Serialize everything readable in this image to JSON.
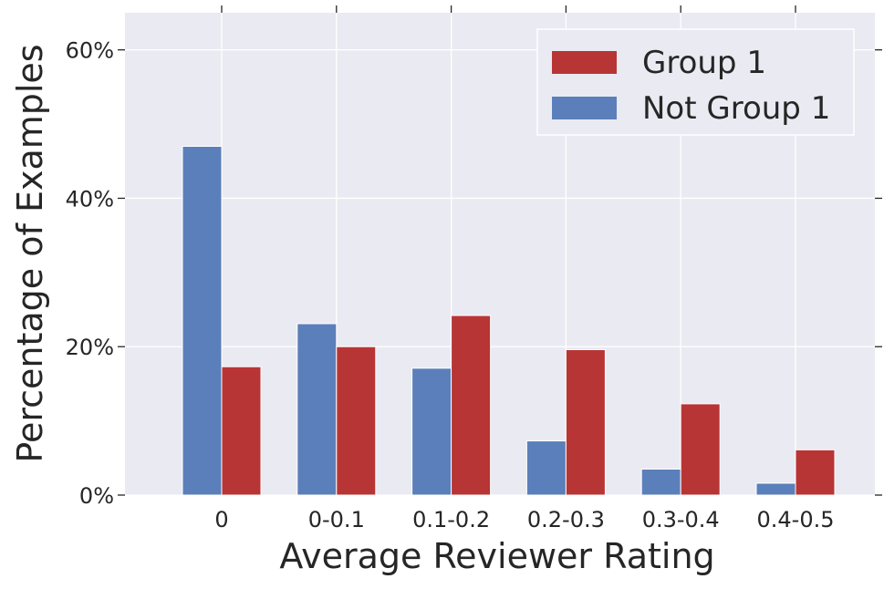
{
  "chart_data": {
    "type": "bar",
    "categories": [
      "0",
      "0-0.1",
      "0.1-0.2",
      "0.2-0.3",
      "0.3-0.4",
      "0.4-0.5"
    ],
    "series": [
      {
        "name": "Not Group 1",
        "values": [
          47.0,
          23.1,
          17.1,
          7.3,
          3.5,
          1.6
        ],
        "color": "#5b7fba"
      },
      {
        "name": "Group 1",
        "values": [
          17.3,
          20.0,
          24.2,
          19.6,
          12.3,
          6.1
        ],
        "color": "#b83535"
      }
    ],
    "legend_order": [
      "Group 1",
      "Not Group 1"
    ],
    "title": "",
    "xlabel": "Average Reviewer Rating",
    "ylabel": "Percentage of Examples",
    "ylim": [
      0,
      65
    ],
    "yticks": [
      0,
      20,
      40,
      60
    ],
    "ytick_labels": [
      "0%",
      "20%",
      "40%",
      "60%"
    ],
    "grid": true,
    "legend_position": "top-right",
    "background_color": "#eaeaf2",
    "grid_color": "#ffffff"
  }
}
